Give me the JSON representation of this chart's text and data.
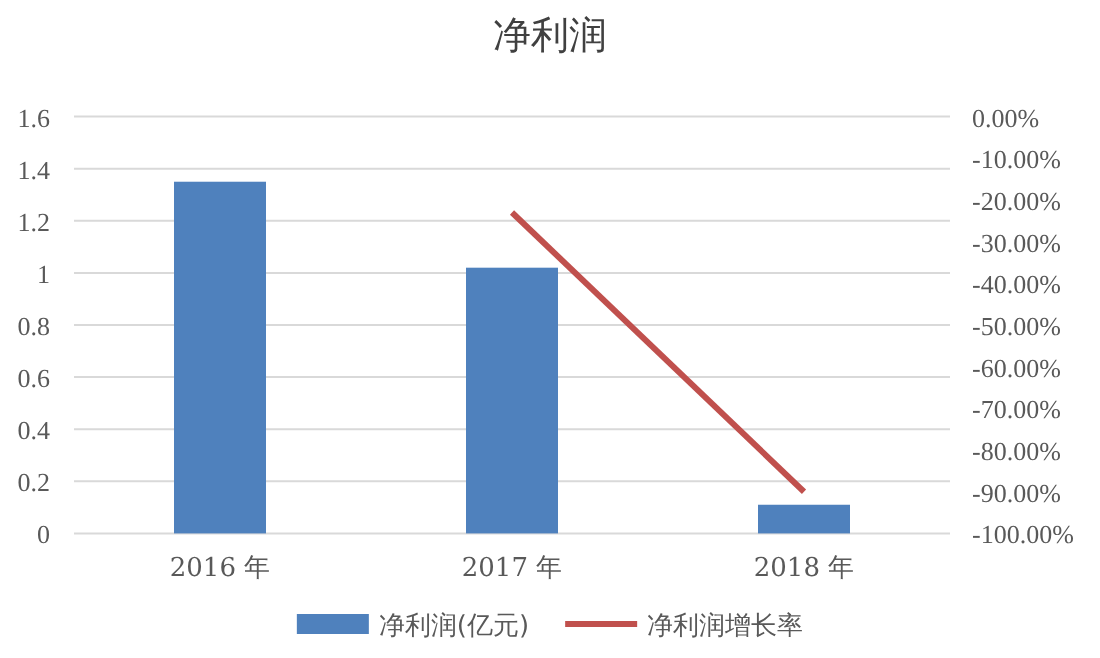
{
  "chart_data": {
    "type": "bar",
    "title": "净利润",
    "categories": [
      "2016 年",
      "2017 年",
      "2018 年"
    ],
    "series": [
      {
        "name": "净利润(亿元)",
        "color": "#4f81bd",
        "values": [
          1.35,
          1.02,
          0.11
        ]
      },
      {
        "name": "净利润增长率",
        "type": "line",
        "axis": "y2",
        "color": "#c0504d",
        "values": [
          null,
          -23,
          -90
        ]
      }
    ],
    "ylim": [
      0,
      1.6
    ],
    "yticks": [
      0,
      0.2,
      0.4,
      0.6,
      0.8,
      1,
      1.2,
      1.4,
      1.6
    ],
    "y2lim": [
      -100,
      0
    ],
    "y2ticks": [
      {
        "value": 0,
        "label": "0.00%"
      },
      {
        "value": -10,
        "label": "-10.00%"
      },
      {
        "value": -20,
        "label": "-20.00%"
      },
      {
        "value": -30,
        "label": "-30.00%"
      },
      {
        "value": -40,
        "label": "-40.00%"
      },
      {
        "value": -50,
        "label": "-50.00%"
      },
      {
        "value": -60,
        "label": "-60.00%"
      },
      {
        "value": -70,
        "label": "-70.00%"
      },
      {
        "value": -80,
        "label": "-80.00%"
      },
      {
        "value": -90,
        "label": "-90.00%"
      },
      {
        "value": -100,
        "label": "-100.00%"
      }
    ],
    "grid": "y",
    "legend": "bottom",
    "marker": "none"
  }
}
